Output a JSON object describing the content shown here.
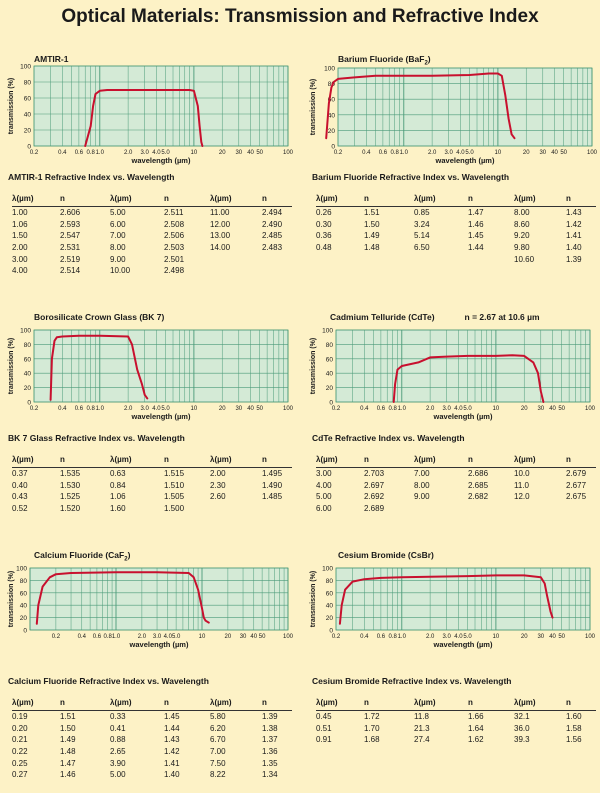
{
  "page_title": "Optical Materials: Transmission and Refractive Index",
  "axis": {
    "ylabel": "transmission (%)",
    "xlabel": "wavelength (µm)",
    "yticks": [
      "0",
      "20",
      "40",
      "60",
      "80",
      "100"
    ],
    "xticks": [
      "0.2",
      "0.4",
      "0.6",
      "0.8",
      "1.0",
      "2.0",
      "3.0",
      "4.0",
      "5.0",
      "10",
      "20",
      "30",
      "40",
      "50",
      "100"
    ]
  },
  "colors": {
    "curve": "#c8102e",
    "plot_bg": "#d4ead6",
    "grid": "#4a9a78",
    "page_bg": "#fdf2c6"
  },
  "chart_data": [
    {
      "type": "line",
      "title": "AMTIR-1",
      "xlabel": "wavelength (µm)",
      "ylabel": "transmission (%)",
      "xlim": [
        0.2,
        100
      ],
      "ylim": [
        0,
        100
      ],
      "xscale": "log",
      "grid": true,
      "x": [
        0.7,
        0.8,
        0.85,
        0.9,
        1.0,
        1.2,
        1.5,
        2.0,
        5,
        9,
        10,
        11,
        11.5,
        12,
        12.3
      ],
      "y": [
        0,
        25,
        50,
        65,
        69,
        70,
        70,
        70,
        70,
        70,
        69,
        50,
        25,
        5,
        0
      ]
    },
    {
      "type": "line",
      "title": "Barium Fluoride (BaF₂)",
      "xlabel": "wavelength (µm)",
      "ylabel": "transmission (%)",
      "xlim": [
        0.2,
        100
      ],
      "ylim": [
        0,
        100
      ],
      "xscale": "log",
      "grid": true,
      "x": [
        0.15,
        0.16,
        0.17,
        0.18,
        0.2,
        0.3,
        0.5,
        1,
        2,
        5,
        8,
        10,
        11,
        12,
        13,
        14,
        15
      ],
      "y": [
        10,
        55,
        75,
        82,
        86,
        88,
        90,
        90,
        90,
        91,
        93,
        93,
        90,
        65,
        35,
        15,
        10
      ]
    },
    {
      "type": "line",
      "title": "Borosilicate Crown Glass (BK 7)",
      "xlabel": "wavelength (µm)",
      "ylabel": "transmission (%)",
      "xlim": [
        0.2,
        100
      ],
      "ylim": [
        0,
        100
      ],
      "xscale": "log",
      "grid": true,
      "x": [
        0.3,
        0.31,
        0.33,
        0.35,
        0.4,
        0.6,
        1.0,
        2.0,
        2.2,
        2.5,
        2.8,
        3.0,
        3.2
      ],
      "y": [
        3,
        60,
        85,
        90,
        91,
        92,
        92,
        91,
        80,
        45,
        25,
        10,
        5
      ]
    },
    {
      "type": "line",
      "title": "Cadmium Telluride (CdTe)",
      "annotation": "n = 2.67 at 10.6 µm",
      "xlabel": "wavelength (µm)",
      "ylabel": "transmission (%)",
      "xlim": [
        0.2,
        100
      ],
      "ylim": [
        0,
        100
      ],
      "xscale": "log",
      "grid": true,
      "x": [
        0.82,
        0.85,
        0.9,
        1.0,
        1.5,
        2,
        3,
        5,
        10,
        15,
        20,
        25,
        28,
        30,
        32
      ],
      "y": [
        0,
        25,
        45,
        50,
        55,
        62,
        63,
        64,
        64,
        65,
        64,
        55,
        40,
        15,
        0
      ]
    },
    {
      "type": "line",
      "title": "Calcium Fluoride (CaF₂)",
      "xlabel": "wavelength (µm)",
      "ylabel": "transmission (%)",
      "xlim": [
        0.1,
        100
      ],
      "ylim": [
        0,
        100
      ],
      "xscale": "log",
      "grid": true,
      "x": [
        0.12,
        0.125,
        0.14,
        0.17,
        0.2,
        0.3,
        1,
        3,
        7,
        8,
        9,
        10,
        10.5,
        11,
        12
      ],
      "y": [
        10,
        40,
        70,
        85,
        90,
        92,
        93,
        93,
        92,
        85,
        65,
        35,
        20,
        15,
        12
      ]
    },
    {
      "type": "line",
      "title": "Cesium Bromide (CsBr)",
      "xlabel": "wavelength (µm)",
      "ylabel": "transmission (%)",
      "xlim": [
        0.2,
        100
      ],
      "ylim": [
        0,
        100
      ],
      "xscale": "log",
      "grid": true,
      "x": [
        0.22,
        0.23,
        0.25,
        0.3,
        0.4,
        0.6,
        1,
        2,
        5,
        10,
        20,
        30,
        33,
        35,
        38,
        40
      ],
      "y": [
        10,
        40,
        65,
        78,
        82,
        84,
        85,
        86,
        87,
        88,
        88,
        85,
        75,
        55,
        30,
        20
      ]
    }
  ],
  "charts": [
    {
      "title": "AMTIR-1",
      "annotation": "",
      "xticks": [
        "0.2",
        "0.4",
        "0.6",
        "0.8",
        "1.0",
        "2.0",
        "3.0",
        "4.0",
        "5.0",
        "10",
        "20",
        "30",
        "40",
        "50",
        "100"
      ]
    },
    {
      "title": "Barium Fluoride (BaF",
      "sub": "2",
      "title_end": ")",
      "annotation": "",
      "xticks": [
        "0.2",
        "0.4",
        "0.6",
        "0.8",
        "1.0",
        "2.0",
        "3.0",
        "4.0",
        "5.0",
        "10",
        "20",
        "30",
        "40",
        "50",
        "100"
      ]
    },
    {
      "title": "Borosilicate Crown Glass (BK 7)",
      "annotation": "",
      "xticks": [
        "0.2",
        "0.4",
        "0.6",
        "0.8",
        "1.0",
        "2.0",
        "3.0",
        "4.0",
        "5.0",
        "10",
        "20",
        "30",
        "40",
        "50",
        "100"
      ]
    },
    {
      "title": "Cadmium Telluride (CdTe)",
      "annotation": "n = 2.67 at 10.6 µm",
      "xticks": [
        "0.2",
        "0.4",
        "0.6",
        "0.8",
        "1.0",
        "2.0",
        "3.0",
        "4.0",
        "5.0",
        "10",
        "20",
        "30",
        "40",
        "50",
        "100"
      ]
    },
    {
      "title": "Calcium Fluoride (CaF",
      "sub": "2",
      "title_end": ")",
      "annotation": "",
      "xticks": [
        "0.2",
        "0.4",
        "0.6",
        "0.8",
        "1.0",
        "2.0",
        "3.0",
        "4.0",
        "5.0",
        "10",
        "20",
        "30",
        "40",
        "50",
        "100"
      ]
    },
    {
      "title": "Cesium Bromide (CsBr)",
      "annotation": "",
      "xticks": [
        "0.2",
        "0.4",
        "0.6",
        "0.8",
        "1.0",
        "2.0",
        "3.0",
        "4.0",
        "5.0",
        "10",
        "20",
        "30",
        "40",
        "50",
        "100"
      ]
    }
  ],
  "tables": [
    {
      "title": "AMTIR-1 Refractive Index vs. Wavelength",
      "headers": [
        "λ(µm)",
        "n",
        "λ(µm)",
        "n",
        "λ(µm)",
        "n"
      ],
      "rows": [
        [
          "1.00",
          "2.606",
          "5.00",
          "2.511",
          "11.00",
          "2.494"
        ],
        [
          "1.06",
          "2.593",
          "6.00",
          "2.508",
          "12.00",
          "2.490"
        ],
        [
          "1.50",
          "2.547",
          "7.00",
          "2.506",
          "13.00",
          "2.485"
        ],
        [
          "2.00",
          "2.531",
          "8.00",
          "2.503",
          "14.00",
          "2.483"
        ],
        [
          "3.00",
          "2.519",
          "9.00",
          "2.501",
          "",
          ""
        ],
        [
          "4.00",
          "2.514",
          "10.00",
          "2.498",
          "",
          ""
        ]
      ]
    },
    {
      "title": "Barium Fluoride Refractive Index vs. Wavelength",
      "headers": [
        "λ(µm)",
        "n",
        "λ(µm)",
        "n",
        "λ(µm)",
        "n"
      ],
      "rows": [
        [
          "0.26",
          "1.51",
          "0.85",
          "1.47",
          "8.00",
          "1.43"
        ],
        [
          "0.30",
          "1.50",
          "3.24",
          "1.46",
          "8.60",
          "1.42"
        ],
        [
          "0.36",
          "1.49",
          "5.14",
          "1.45",
          "9.20",
          "1.41"
        ],
        [
          "0.48",
          "1.48",
          "6.50",
          "1.44",
          "9.80",
          "1.40"
        ],
        [
          "",
          "",
          "",
          "",
          "10.60",
          "1.39"
        ]
      ]
    },
    {
      "title": "BK 7 Glass Refractive Index vs. Wavelength",
      "headers": [
        "λ(µm)",
        "n",
        "λ(µm)",
        "n",
        "λ(µm)",
        "n"
      ],
      "rows": [
        [
          "0.37",
          "1.535",
          "0.63",
          "1.515",
          "2.00",
          "1.495"
        ],
        [
          "0.40",
          "1.530",
          "0.84",
          "1.510",
          "2.30",
          "1.490"
        ],
        [
          "0.43",
          "1.525",
          "1.06",
          "1.505",
          "2.60",
          "1.485"
        ],
        [
          "0.52",
          "1.520",
          "1.60",
          "1.500",
          "",
          ""
        ]
      ]
    },
    {
      "title": "CdTe Refractive Index vs. Wavelength",
      "headers": [
        "λ(µm)",
        "n",
        "λ(µm)",
        "n",
        "λ(µm)",
        "n"
      ],
      "rows": [
        [
          "3.00",
          "2.703",
          "7.00",
          "2.686",
          "10.0",
          "2.679"
        ],
        [
          "4.00",
          "2.697",
          "8.00",
          "2.685",
          "11.0",
          "2.677"
        ],
        [
          "5.00",
          "2.692",
          "9.00",
          "2.682",
          "12.0",
          "2.675"
        ],
        [
          "6.00",
          "2.689",
          "",
          "",
          "",
          ""
        ]
      ]
    },
    {
      "title": "Calcium Fluoride Refractive Index vs. Wavelength",
      "headers": [
        "λ(µm)",
        "n",
        "λ(µm)",
        "n",
        "λ(µm)",
        "n"
      ],
      "rows": [
        [
          "0.19",
          "1.51",
          "0.33",
          "1.45",
          "5.80",
          "1.39"
        ],
        [
          "0.20",
          "1.50",
          "0.41",
          "1.44",
          "6.20",
          "1.38"
        ],
        [
          "0.21",
          "1.49",
          "0.88",
          "1.43",
          "6.70",
          "1.37"
        ],
        [
          "0.22",
          "1.48",
          "2.65",
          "1.42",
          "7.00",
          "1.36"
        ],
        [
          "0.25",
          "1.47",
          "3.90",
          "1.41",
          "7.50",
          "1.35"
        ],
        [
          "0.27",
          "1.46",
          "5.00",
          "1.40",
          "8.22",
          "1.34"
        ]
      ]
    },
    {
      "title": "Cesium Bromide Refractive Index vs. Wavelength",
      "headers": [
        "λ(µm)",
        "n",
        "λ(µm)",
        "n",
        "λ(µm)",
        "n"
      ],
      "rows": [
        [
          "0.45",
          "1.72",
          "11.8",
          "1.66",
          "32.1",
          "1.60"
        ],
        [
          "0.51",
          "1.70",
          "21.3",
          "1.64",
          "36.0",
          "1.58"
        ],
        [
          "0.91",
          "1.68",
          "27.4",
          "1.62",
          "39.3",
          "1.56"
        ]
      ]
    }
  ]
}
